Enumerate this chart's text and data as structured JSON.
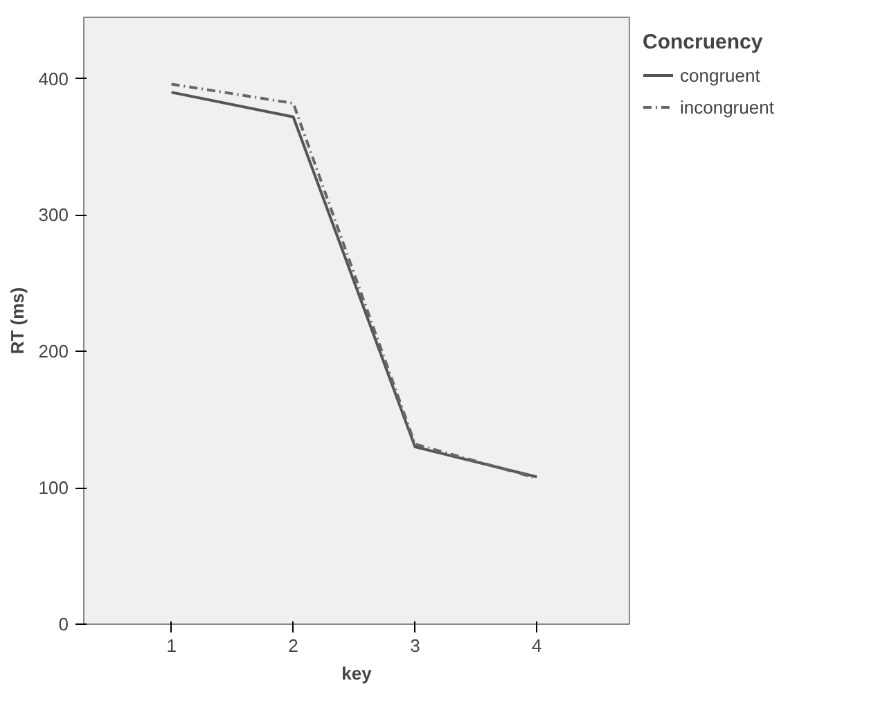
{
  "chart_data": {
    "type": "line",
    "xlabel": "key",
    "ylabel": "RT (ms)",
    "legend_title": "Concruency",
    "x": [
      1,
      2,
      3,
      4
    ],
    "xlim": [
      0.28,
      4.76
    ],
    "xticks": [
      1,
      2,
      3,
      4
    ],
    "ylim": [
      0,
      445
    ],
    "yticks": [
      0,
      100,
      200,
      300,
      400
    ],
    "grid": false,
    "legend": "top right",
    "marker": "none",
    "series": [
      {
        "name": "congruent",
        "color": "#555555",
        "line_style": "solid",
        "values": [
          390,
          372,
          130,
          108
        ]
      },
      {
        "name": "incongruent",
        "color": "#666666",
        "line_style": "dashed",
        "values": [
          396,
          382,
          132,
          107
        ]
      }
    ]
  }
}
